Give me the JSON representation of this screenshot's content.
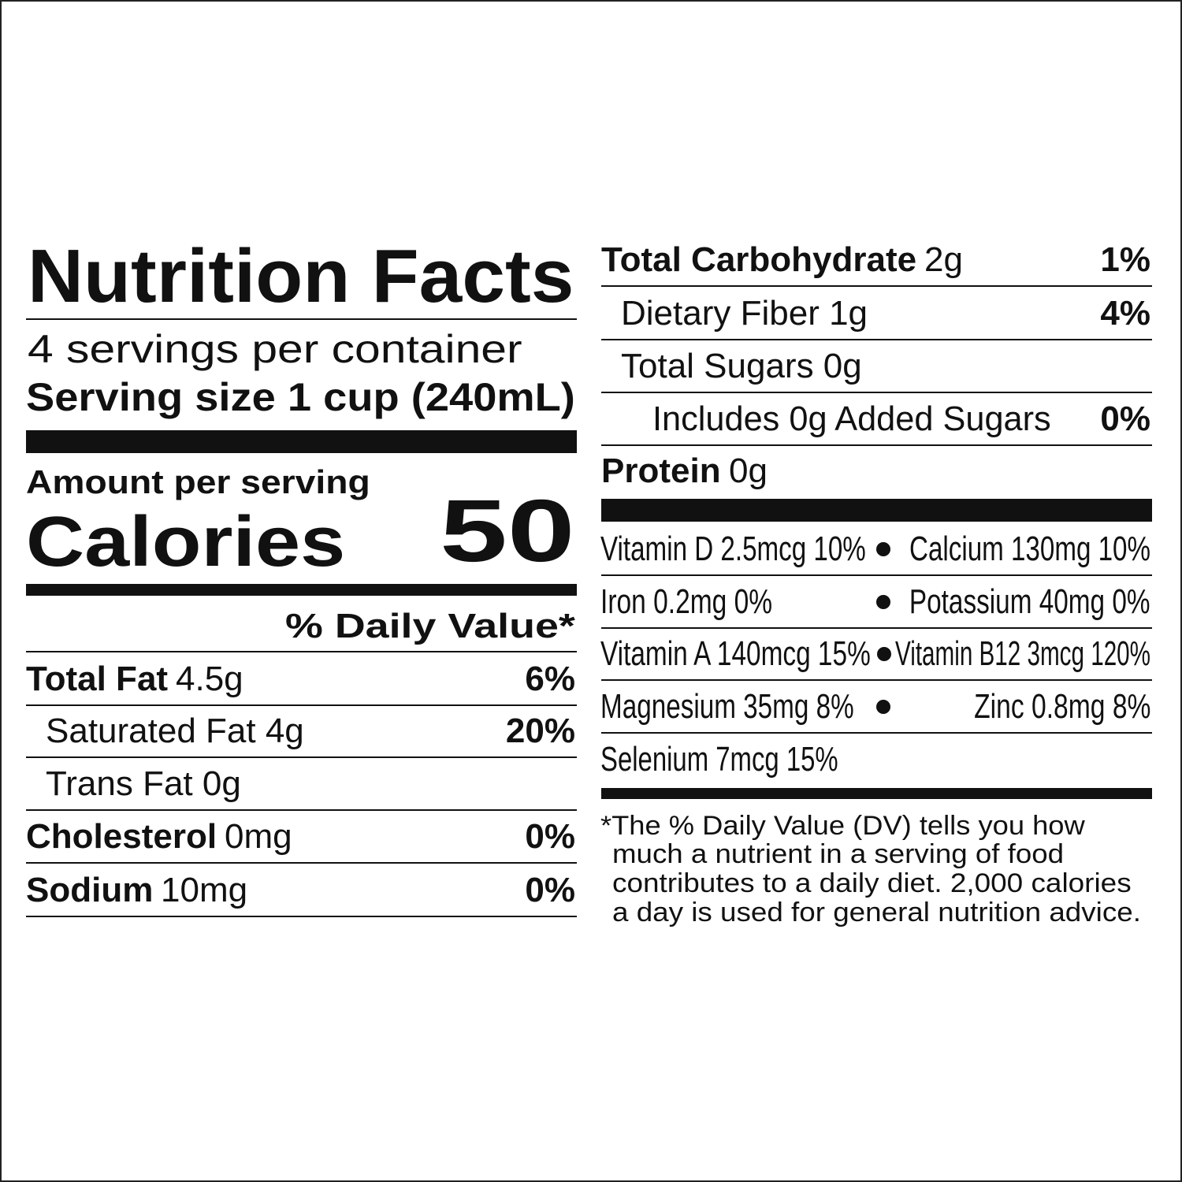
{
  "title": "Nutrition Facts",
  "servings_per_container": "4 servings per container",
  "serving_size": "Serving size 1 cup (240mL)",
  "amount_per_serving": "Amount per serving",
  "calories_label": "Calories",
  "calories_value": "50",
  "daily_value_header": "% Daily Value*",
  "left_rows": [
    {
      "name": "Total Fat",
      "amount": "4.5g",
      "dv": "6%"
    },
    {
      "name": "Saturated Fat 4g",
      "dv": "20%"
    },
    {
      "name": "Trans Fat 0g"
    },
    {
      "name": "Cholesterol",
      "amount": "0mg",
      "dv": "0%"
    },
    {
      "name": "Sodium",
      "amount": "10mg",
      "dv": "0%"
    }
  ],
  "right_rows": [
    {
      "name": "Total Carbohydrate",
      "amount": "2g",
      "dv": "1%"
    },
    {
      "name": "Dietary Fiber 1g",
      "dv": "4%"
    },
    {
      "name": "Total Sugars 0g"
    },
    {
      "name": "Includes 0g Added Sugars",
      "dv": "0%"
    },
    {
      "name": "Protein",
      "amount": "0g"
    }
  ],
  "micronutrients": [
    {
      "left": "Vitamin D 2.5mcg 10%",
      "right": "Calcium 130mg 10%"
    },
    {
      "left": "Iron 0.2mg 0%",
      "right": "Potassium 40mg 0%"
    },
    {
      "left": "Vitamin A 140mcg 15%",
      "right": "Vitamin B12 3mcg 120%"
    },
    {
      "left": "Magnesium 35mg 8%",
      "right": "Zinc 0.8mg 8%"
    },
    {
      "left": "Selenium 7mcg 15%"
    }
  ],
  "footnote": [
    "*The % Daily Value (DV) tells you how",
    "much a nutrient in a serving of food",
    "contributes to a daily diet. 2,000 calories",
    "a day is used for general nutrition advice."
  ]
}
